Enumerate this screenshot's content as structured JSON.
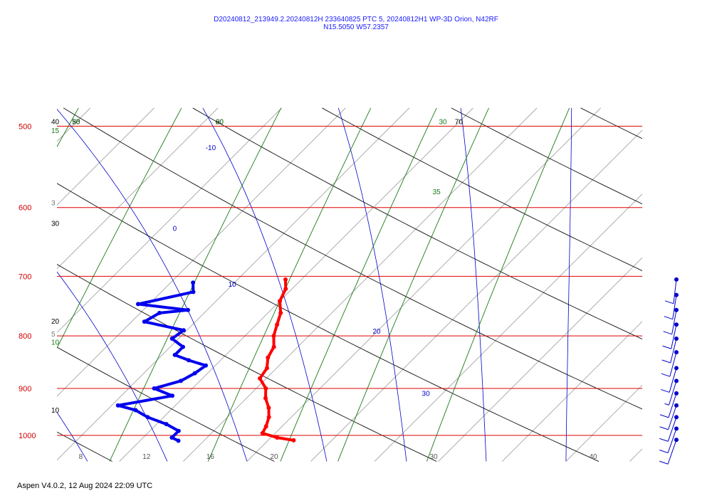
{
  "title": {
    "line1": "D20240812_213949.2.20240812H 233640825 PTC 5, 20240812H1 WP-3D Orion, N42RF",
    "line2": "N15.5050 W57.2357"
  },
  "footer": "Aspen V4.0.2, 12 Aug 2024  22:09 UTC",
  "colors": {
    "isobar": "#dd0000",
    "isotherm": "#9a9a9a",
    "dry_adiabat": "#111111",
    "moist_adiabat": "#0000cc",
    "mixing_ratio": "#1a7a1a",
    "temperature": "#ff0000",
    "dewpoint": "#0000ee",
    "barbs": "#0000cc"
  },
  "chart_data": {
    "type": "skew-t",
    "pressure_axis": {
      "ticks": [
        500,
        600,
        700,
        800,
        900,
        1000
      ],
      "tick_labels": [
        "500",
        "600",
        "700",
        "800",
        "900",
        "1000"
      ]
    },
    "temperature_axis": {
      "ticks": [
        8,
        12,
        16,
        20,
        30,
        40
      ],
      "tick_labels": [
        "8",
        "12",
        "16",
        "20",
        "30",
        "40"
      ]
    },
    "moist_adiabat_labels": [
      {
        "text": "-10",
        "p": 530,
        "t": -2
      },
      {
        "text": "0",
        "p": 635,
        "t": 1
      },
      {
        "text": "10",
        "p": 720,
        "t": 8
      },
      {
        "text": "20",
        "p": 800,
        "t": 20
      },
      {
        "text": "30",
        "p": 920,
        "t": 27
      }
    ],
    "dry_adiabat_labels": [
      {
        "text": "40",
        "p": 500,
        "t": -27
      },
      {
        "text": "50",
        "p": 500,
        "t": -12
      },
      {
        "text": "60",
        "p": 500,
        "t": -3
      },
      {
        "text": "70",
        "p": 500,
        "t": 12
      },
      {
        "text": "30",
        "p": 628,
        "t": -17
      },
      {
        "text": "20",
        "p": 782,
        "t": -16
      },
      {
        "text": "10",
        "p": 955,
        "t": -13
      }
    ],
    "mixing_ratio_labels": [
      {
        "text": "15",
        "p": 510,
        "t": -27
      },
      {
        "text": "25",
        "p": 500,
        "t": -12
      },
      {
        "text": "20",
        "p": 500,
        "t": -3
      },
      {
        "text": "30",
        "p": 500,
        "t": 11
      },
      {
        "text": "35",
        "p": 585,
        "t": 15
      },
      {
        "text": "10",
        "p": 820,
        "t": -15
      }
    ],
    "isotherm_edge_labels": [
      {
        "text": "3",
        "p": 600,
        "t": -23
      },
      {
        "text": "5",
        "p": 805,
        "t": -15
      }
    ],
    "temperature_profile": {
      "pressure": [
        705,
        720,
        740,
        760,
        780,
        800,
        820,
        840,
        860,
        880,
        900,
        920,
        940,
        960,
        980,
        995,
        1005,
        1011
      ],
      "temperature": [
        11.0,
        11.6,
        12.0,
        12.8,
        13.3,
        13.8,
        14.5,
        14.8,
        15.4,
        15.6,
        16.6,
        17.2,
        18.0,
        18.6,
        19.0,
        19.2,
        20.4,
        21.6
      ]
    },
    "dewpoint_profile": {
      "pressure": [
        710,
        725,
        745,
        755,
        760,
        775,
        790,
        805,
        820,
        835,
        845,
        855,
        870,
        885,
        900,
        915,
        935,
        945,
        960,
        975,
        990,
        1005,
        1012
      ],
      "dewpoint": [
        5.4,
        6.0,
        3.3,
        6.8,
        5.2,
        4.8,
        7.8,
        7.6,
        8.8,
        8.8,
        10.0,
        11.4,
        11.2,
        10.8,
        9.6,
        11.2,
        8.4,
        9.8,
        11.0,
        12.6,
        13.8,
        13.8,
        14.4
      ]
    },
    "wind_barbs": {
      "pressure": [
        705,
        730,
        755,
        780,
        805,
        830,
        860,
        885,
        910,
        935,
        960,
        985,
        1010
      ],
      "speed_kt": [
        10,
        10,
        10,
        10,
        10,
        10,
        10,
        5,
        10,
        10,
        10,
        10,
        10
      ]
    },
    "xlim_at_1000hpa": [
      6,
      44
    ],
    "ylim_hpa": [
      500,
      1050
    ],
    "skew": "temperature lines skewed 45 degrees"
  }
}
